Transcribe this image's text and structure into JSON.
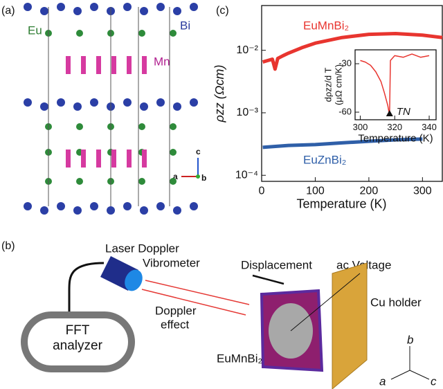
{
  "panels": {
    "a": {
      "label": "(a)",
      "atoms": [
        "Eu",
        "Bi",
        "Mn"
      ],
      "axes": [
        "c",
        "a",
        "b"
      ]
    },
    "b": {
      "label": "(b)",
      "vibrometer": [
        "Laser Doppler",
        "Vibrometer"
      ],
      "displacement": "Displacement",
      "voltage": "ac Voltage",
      "doppler": [
        "Doppler",
        "effect"
      ],
      "holder": "Cu holder",
      "analyzer": [
        "FFT",
        "analyzer"
      ],
      "sample": "EuMnBi₂",
      "axes": [
        "a",
        "b",
        "c"
      ]
    },
    "c": {
      "label": "(c)"
    }
  },
  "chart_data": [
    {
      "type": "line",
      "xlabel": "Temperature (K)",
      "ylabel": "ρzz (Ωcm)",
      "log_y": true,
      "xlim": [
        0,
        337
      ],
      "xticks": [
        0,
        100,
        200,
        300
      ],
      "ylim": [
        8e-05,
        0.052
      ],
      "yticks": [
        {
          "value": 0.0001,
          "label": "10⁻⁴"
        },
        {
          "value": 0.001,
          "label": "10⁻³"
        },
        {
          "value": 0.01,
          "label": "10⁻²"
        }
      ],
      "series": [
        {
          "name": "EuMnBi₂",
          "color": "#e8352f",
          "x": [
            2,
            10,
            20,
            25,
            30,
            40,
            50,
            75,
            100,
            150,
            200,
            250,
            300,
            337
          ],
          "values": [
            0.0065,
            0.0068,
            0.0072,
            0.005,
            0.0074,
            0.0082,
            0.009,
            0.011,
            0.013,
            0.016,
            0.018,
            0.0185,
            0.0175,
            0.016
          ]
        },
        {
          "name": "EuZnBi₂",
          "color": "#2f5fa8",
          "x": [
            2,
            50,
            100,
            150,
            200,
            250,
            300
          ],
          "values": [
            0.00028,
            0.0003,
            0.00031,
            0.00033,
            0.00035,
            0.00037,
            0.00038
          ]
        }
      ]
    },
    {
      "type": "line",
      "xlabel": "Temperature (K)",
      "ylabel": [
        "dρzz/d T",
        "(μΩ cm/K)"
      ],
      "annotation": "TN",
      "xlim": [
        297,
        344
      ],
      "xticks": [
        300,
        320,
        340
      ],
      "ylim": [
        -64.7,
        -21.4
      ],
      "yticks": [
        -30,
        -60
      ],
      "marker_x": 317,
      "series": [
        {
          "name": null,
          "color": "#e8352f",
          "x": [
            300,
            303,
            306,
            309,
            312,
            314,
            316,
            317,
            317.5,
            320,
            325,
            330,
            335,
            340
          ],
          "values": [
            -28,
            -29,
            -31,
            -35,
            -41,
            -48,
            -56,
            -62,
            -28,
            -25,
            -26,
            -24,
            -26,
            -25
          ]
        }
      ]
    }
  ]
}
